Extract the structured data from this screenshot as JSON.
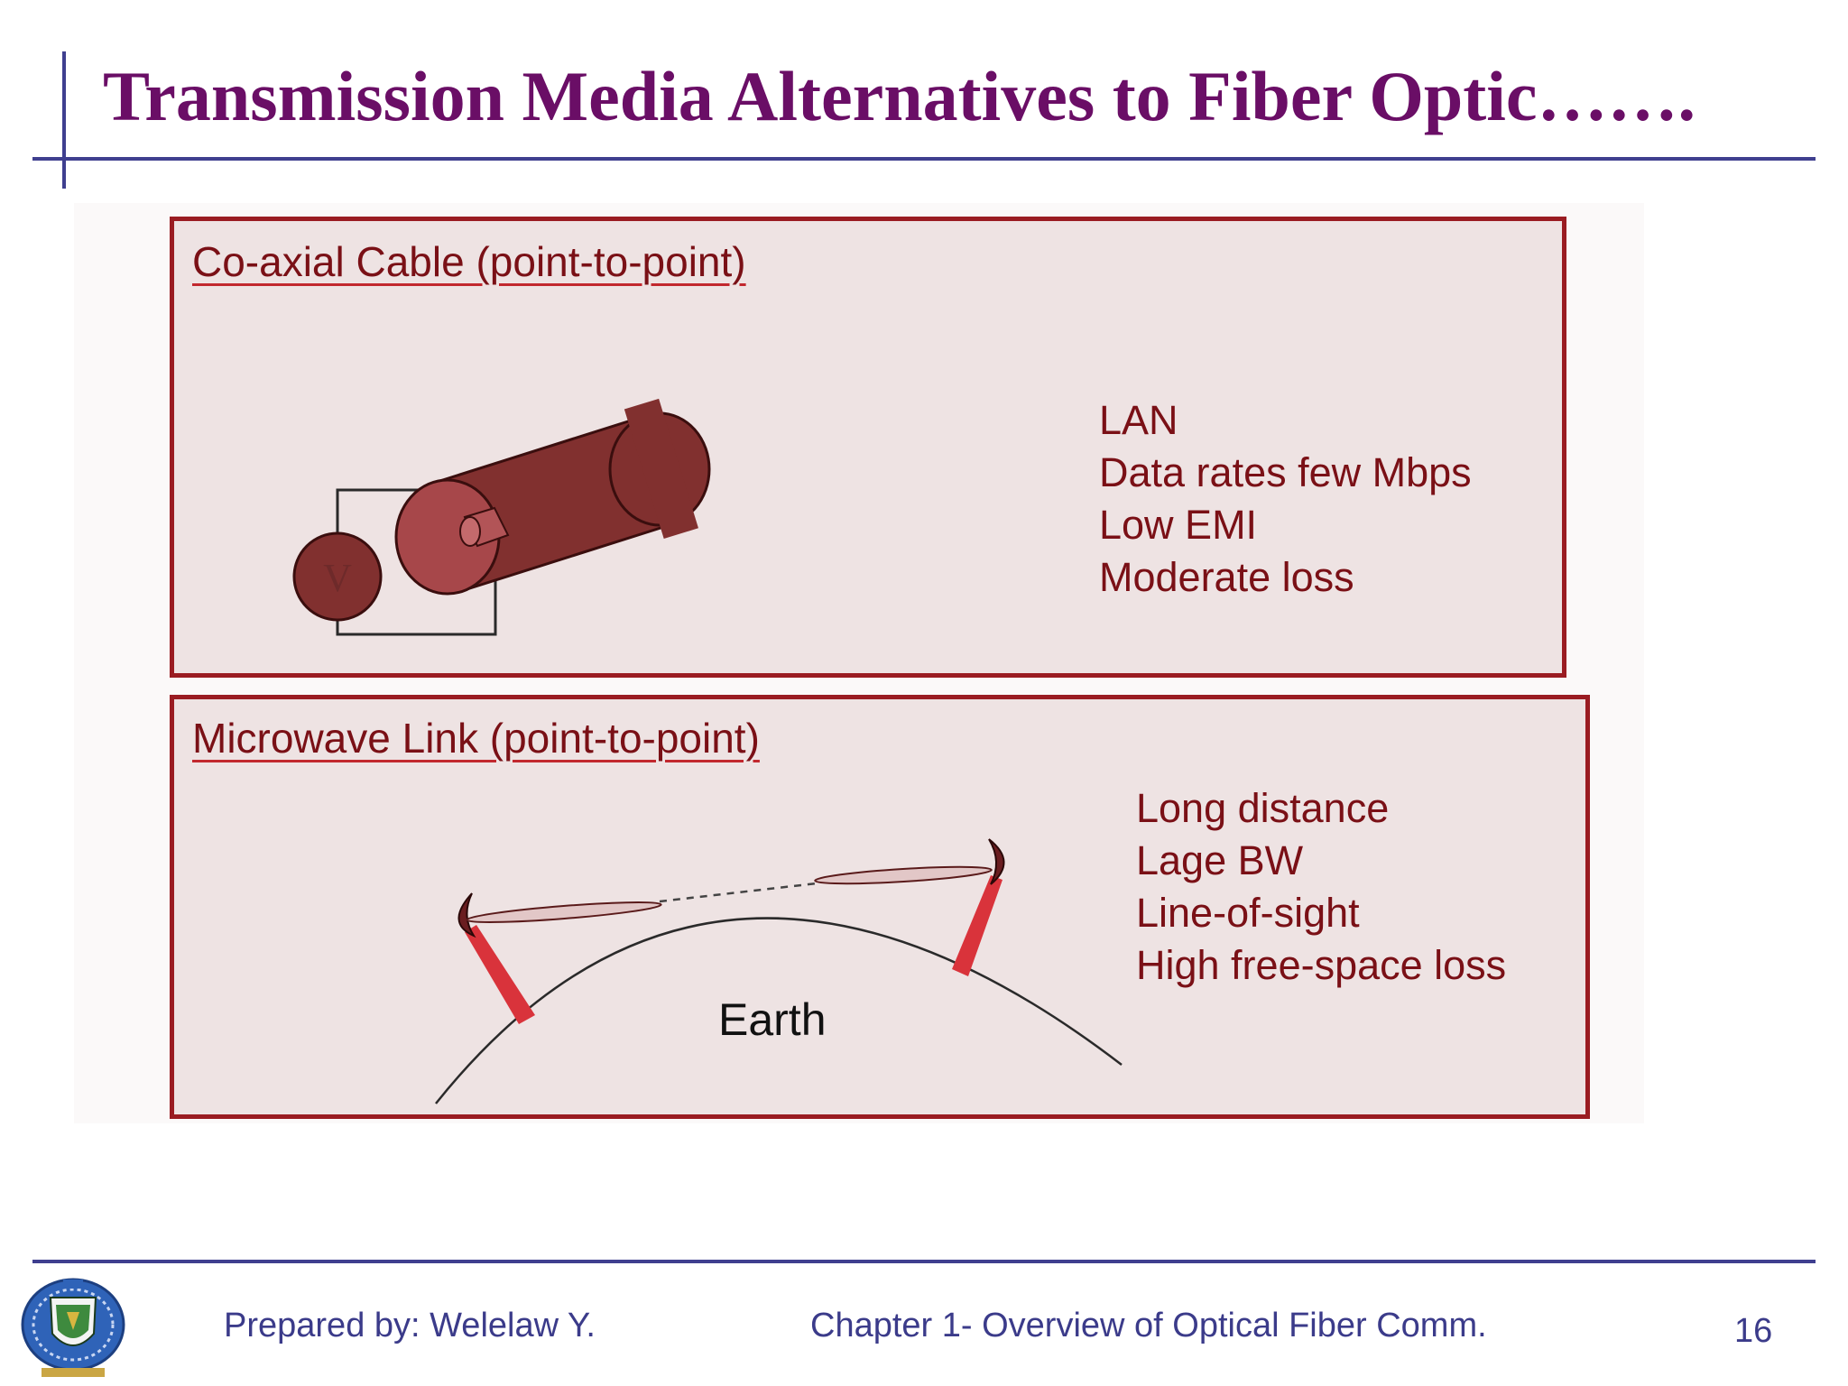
{
  "slide": {
    "title": "Transmission Media Alternatives to Fiber Optic……."
  },
  "coax_panel": {
    "title": "Co-axial Cable (point-to-point)",
    "features": [
      "LAN",
      "Data rates few Mbps",
      "Low EMI",
      "Moderate loss"
    ],
    "voltage_source_label": "V"
  },
  "microwave_panel": {
    "title": "Microwave Link (point-to-point)",
    "features": [
      "Long distance",
      "Lage BW",
      "Line-of-sight",
      "High free-space loss"
    ],
    "earth_label": "Earth"
  },
  "footer": {
    "author": "Prepared by: Welelaw Y.",
    "chapter": "Chapter 1- Overview of Optical Fiber Comm.",
    "page_number": "16"
  },
  "colors": {
    "title": "#6a0e66",
    "rule": "#3f3f8f",
    "panel_border": "#9a1c22",
    "panel_fill": "#eee3e3",
    "panel_text": "#7a1016",
    "footer_text": "#3b3b8a"
  },
  "icons": {
    "logo": "university-crest-icon"
  }
}
